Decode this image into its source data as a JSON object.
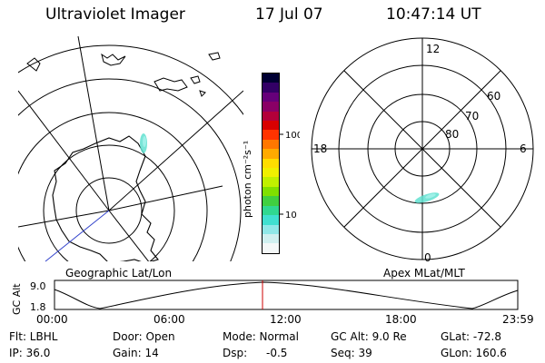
{
  "header": {
    "title": "Ultraviolet Imager",
    "date": "17 Jul 07",
    "time": "10:47:14 UT"
  },
  "colorbar": {
    "label": "photon cm⁻²s⁻¹",
    "ticks": [
      "100",
      "10"
    ],
    "colors": [
      "#000033",
      "#330066",
      "#66007a",
      "#8a0066",
      "#b3003a",
      "#d80000",
      "#ff3300",
      "#ff7700",
      "#ffaa00",
      "#ffdd00",
      "#f0f000",
      "#c0f000",
      "#80e000",
      "#40d040",
      "#30d890",
      "#40e0d0",
      "#90e8e8",
      "#d0f0f0",
      "#f4f8f8"
    ]
  },
  "left_map": {
    "label": "Geographic Lat/Lon"
  },
  "right_polar": {
    "label": "Apex MLat/MLT",
    "mlt_labels": {
      "top": "12",
      "left": "18",
      "right": "6",
      "bottom": "0"
    },
    "lat_labels": [
      "60",
      "70",
      "80"
    ]
  },
  "timeline": {
    "axis_label": "GC Alt",
    "y_ticks": [
      "9.0",
      "1.8"
    ],
    "x_ticks": [
      "00:00",
      "06:00",
      "12:00",
      "18:00",
      "23:59"
    ],
    "marker_color": "#cc0000"
  },
  "info": {
    "row1": {
      "flt": "Flt: LBHL",
      "door": "Door: Open",
      "mode": "Mode: Normal",
      "gcalt": "GC Alt: 9.0 Re",
      "glat": "GLat: -72.8"
    },
    "row2": {
      "ip": "IP: 36.0",
      "gain": "Gain: 14",
      "dsp_label": "Dsp:",
      "dsp_value": "-0.5",
      "seq": "Seq: 39",
      "glon": "GLon: 160.6"
    }
  }
}
